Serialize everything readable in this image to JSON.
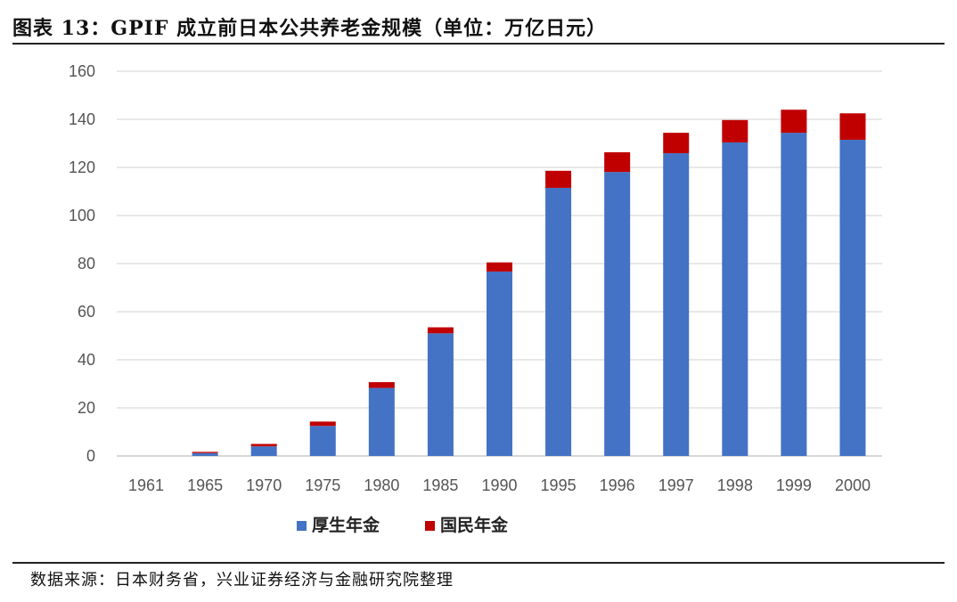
{
  "page": {
    "title": "图表 13：GPIF 成立前日本公共养老金规模（单位：万亿日元）",
    "source": "数据来源：日本财务省，兴业证券经济与金融研究院整理"
  },
  "chart_data": {
    "type": "bar",
    "stacked": true,
    "categories": [
      "1961",
      "1965",
      "1970",
      "1975",
      "1980",
      "1985",
      "1990",
      "1995",
      "1996",
      "1997",
      "1998",
      "1999",
      "2000"
    ],
    "series": [
      {
        "name": "厚生年金",
        "color": "#4472C4",
        "values": [
          0,
          1.2,
          4.0,
          12.5,
          28.3,
          51.0,
          76.7,
          111.5,
          118.1,
          125.9,
          130.4,
          134.4,
          131.5
        ]
      },
      {
        "name": "国民年金",
        "color": "#C00000",
        "values": [
          0,
          0.5,
          1.0,
          1.8,
          2.4,
          2.5,
          3.8,
          7.1,
          8.2,
          8.5,
          9.3,
          9.6,
          11.0
        ]
      }
    ],
    "ylim": [
      0,
      160
    ],
    "yticks": [
      "0",
      "20",
      "40",
      "60",
      "80",
      "100",
      "120",
      "140",
      "160"
    ],
    "grid": true,
    "legend": "bottom-center"
  }
}
